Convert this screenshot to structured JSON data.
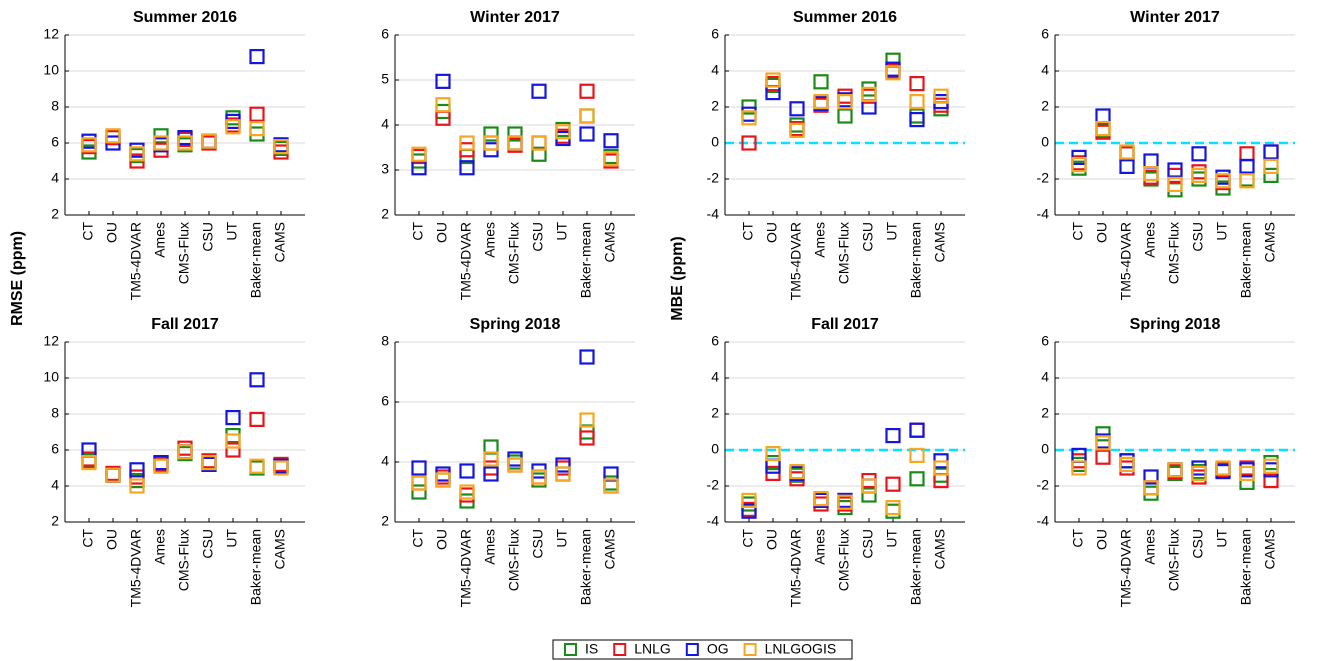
{
  "chart_data": [
    {
      "type": "scatter",
      "title": "Summer 2016",
      "ylabel": "RMSE (ppm)",
      "categories": [
        "CT",
        "OU",
        "TM5-4DVAR",
        "Ames",
        "CMS-Flux",
        "CSU",
        "UT",
        "Baker-mean",
        "CAMS"
      ],
      "ylim": [
        2,
        12
      ],
      "yticks": [
        2,
        4,
        6,
        8,
        10,
        12
      ],
      "grid": true,
      "series": [
        {
          "name": "IS",
          "color": "#1a8a1a",
          "values": [
            5.5,
            6.3,
            5.3,
            6.4,
            5.9,
            6.1,
            7.4,
            6.5,
            5.7
          ]
        },
        {
          "name": "LNLG",
          "color": "#e8141c",
          "values": [
            5.8,
            6.3,
            5.0,
            5.6,
            6.2,
            6.0,
            7.0,
            7.6,
            5.5
          ]
        },
        {
          "name": "OG",
          "color": "#1515e0",
          "values": [
            6.1,
            6.0,
            5.6,
            5.9,
            6.3,
            6.1,
            7.2,
            10.8,
            5.9
          ]
        },
        {
          "name": "LNLGOGIS",
          "color": "#f5a623",
          "values": [
            5.9,
            6.4,
            5.4,
            6.0,
            6.0,
            6.1,
            6.9,
            6.8,
            5.8
          ]
        }
      ]
    },
    {
      "type": "scatter",
      "title": "Winter 2017",
      "categories": [
        "CT",
        "OU",
        "TM5-4DVAR",
        "Ames",
        "CMS-Flux",
        "CSU",
        "UT",
        "Baker-mean",
        "CAMS"
      ],
      "ylim": [
        2,
        6
      ],
      "yticks": [
        2,
        3,
        4,
        5,
        6
      ],
      "grid": true,
      "series": [
        {
          "values": [
            3.2,
            4.3,
            3.3,
            3.8,
            3.8,
            3.35,
            3.9,
            4.2,
            3.3
          ]
        },
        {
          "values": [
            3.3,
            4.15,
            3.45,
            3.6,
            3.55,
            3.6,
            3.75,
            4.75,
            3.2
          ]
        },
        {
          "values": [
            3.05,
            4.97,
            3.05,
            3.45,
            3.6,
            4.75,
            3.7,
            3.8,
            3.65
          ]
        },
        {
          "values": [
            3.35,
            4.45,
            3.6,
            3.6,
            3.6,
            3.6,
            3.85,
            4.2,
            3.25
          ]
        }
      ]
    },
    {
      "type": "scatter",
      "title": "Summer 2016",
      "ylabel": "MBE (ppm)",
      "categories": [
        "CT",
        "OU",
        "TM5-4DVAR",
        "Ames",
        "CMS-Flux",
        "CSU",
        "UT",
        "Baker-mean",
        "CAMS"
      ],
      "ylim": [
        -4,
        6
      ],
      "yticks": [
        -4,
        -2,
        0,
        2,
        4,
        6
      ],
      "grid": true,
      "reference_line": 0,
      "series": [
        {
          "values": [
            2.0,
            3.2,
            1.0,
            3.4,
            1.5,
            3.0,
            4.6,
            1.5,
            1.9
          ]
        },
        {
          "values": [
            0.0,
            3.3,
            0.8,
            2.1,
            2.6,
            2.6,
            4.0,
            3.3,
            2.1
          ]
        },
        {
          "values": [
            1.6,
            2.8,
            1.9,
            2.2,
            2.4,
            2.0,
            4.1,
            1.3,
            2.3
          ]
        },
        {
          "values": [
            1.4,
            3.5,
            0.7,
            2.3,
            2.3,
            2.7,
            3.9,
            2.3,
            2.6
          ]
        }
      ]
    },
    {
      "type": "scatter",
      "title": "Winter 2017",
      "categories": [
        "CT",
        "OU",
        "TM5-4DVAR",
        "Ames",
        "CMS-Flux",
        "CSU",
        "UT",
        "Baker-mean",
        "CAMS"
      ],
      "ylim": [
        -4,
        6
      ],
      "yticks": [
        -4,
        -2,
        0,
        2,
        4,
        6
      ],
      "grid": true,
      "reference_line": 0,
      "series": [
        {
          "values": [
            -1.4,
            0.7,
            -0.6,
            -2.0,
            -2.6,
            -2.0,
            -2.5,
            -2.0,
            -1.8
          ]
        },
        {
          "values": [
            -1.1,
            0.6,
            -0.6,
            -1.9,
            -1.8,
            -1.6,
            -2.2,
            -0.6,
            -0.5
          ]
        },
        {
          "values": [
            -0.8,
            1.5,
            -1.3,
            -1.0,
            -1.5,
            -0.6,
            -1.9,
            -1.3,
            -0.5
          ]
        },
        {
          "values": [
            -1.2,
            0.8,
            -0.5,
            -1.7,
            -2.3,
            -1.8,
            -2.1,
            -2.1,
            -1.3
          ]
        }
      ]
    },
    {
      "type": "scatter",
      "title": "Fall 2017",
      "categories": [
        "CT",
        "OU",
        "TM5-4DVAR",
        "Ames",
        "CMS-Flux",
        "CSU",
        "UT",
        "Baker-mean",
        "CAMS"
      ],
      "ylim": [
        2,
        12
      ],
      "yticks": [
        2,
        4,
        6,
        8,
        10,
        12
      ],
      "grid": true,
      "series": [
        {
          "values": [
            5.4,
            4.6,
            4.3,
            5.3,
            5.8,
            5.2,
            6.8,
            5.0,
            5.1
          ]
        },
        {
          "values": [
            5.5,
            4.7,
            4.5,
            5.2,
            6.1,
            5.4,
            6.0,
            7.7,
            5.2
          ]
        },
        {
          "values": [
            6.0,
            4.6,
            4.9,
            5.3,
            5.9,
            5.2,
            7.8,
            9.9,
            5.1
          ]
        },
        {
          "values": [
            5.3,
            4.6,
            4.0,
            5.1,
            5.9,
            5.3,
            6.5,
            5.1,
            5.0
          ]
        }
      ]
    },
    {
      "type": "scatter",
      "title": "Spring 2018",
      "categories": [
        "CT",
        "OU",
        "TM5-4DVAR",
        "Ames",
        "CMS-Flux",
        "CSU",
        "UT",
        "Baker-mean",
        "CAMS"
      ],
      "ylim": [
        2,
        8
      ],
      "yticks": [
        2,
        4,
        6,
        8
      ],
      "grid": true,
      "series": [
        {
          "values": [
            3.0,
            3.4,
            2.7,
            4.5,
            4.0,
            3.4,
            3.6,
            5.0,
            3.3
          ]
        },
        {
          "values": [
            3.3,
            3.5,
            2.9,
            3.8,
            3.9,
            3.5,
            3.8,
            4.8,
            3.2
          ]
        },
        {
          "values": [
            3.8,
            3.6,
            3.7,
            3.6,
            4.1,
            3.7,
            3.9,
            7.5,
            3.6
          ]
        },
        {
          "values": [
            3.3,
            3.4,
            3.0,
            4.1,
            3.9,
            3.5,
            3.6,
            5.4,
            3.2
          ]
        }
      ]
    },
    {
      "type": "scatter",
      "title": "Fall 2017",
      "categories": [
        "CT",
        "OU",
        "TM5-4DVAR",
        "Ames",
        "CMS-Flux",
        "CSU",
        "UT",
        "Baker-mean",
        "CAMS"
      ],
      "ylim": [
        -4,
        6
      ],
      "yticks": [
        -4,
        -2,
        0,
        2,
        4,
        6
      ],
      "grid": true,
      "reference_line": 0,
      "series": [
        {
          "values": [
            -3.0,
            -0.7,
            -1.4,
            -2.8,
            -3.2,
            -2.5,
            -3.4,
            -1.6,
            -1.4
          ]
        },
        {
          "values": [
            -3.3,
            -1.3,
            -1.6,
            -3.0,
            -3.0,
            -1.7,
            -1.9,
            1.1,
            -1.7
          ]
        },
        {
          "values": [
            -3.4,
            -0.9,
            -1.3,
            -2.8,
            -2.8,
            -2.0,
            0.8,
            1.1,
            -0.6
          ]
        },
        {
          "values": [
            -2.8,
            -0.2,
            -1.2,
            -2.7,
            -2.9,
            -2.0,
            -3.2,
            -0.3,
            -1.0
          ]
        }
      ]
    },
    {
      "type": "scatter",
      "title": "Spring 2018",
      "categories": [
        "CT",
        "OU",
        "TM5-4DVAR",
        "Ames",
        "CMS-Flux",
        "CSU",
        "UT",
        "Baker-mean",
        "CAMS"
      ],
      "ylim": [
        -4,
        6
      ],
      "yticks": [
        -4,
        -2,
        0,
        2,
        4,
        6
      ],
      "grid": true,
      "reference_line": 0,
      "series": [
        {
          "values": [
            -0.8,
            0.9,
            -0.6,
            -2.4,
            -1.3,
            -1.2,
            -1.1,
            -1.8,
            -0.7
          ]
        },
        {
          "values": [
            -0.6,
            -0.4,
            -1.0,
            -2.1,
            -1.2,
            -1.5,
            -1.1,
            -1.0,
            -1.7
          ]
        },
        {
          "values": [
            -0.3,
            0.5,
            -0.6,
            -1.5,
            -1.1,
            -1.0,
            -1.2,
            -1.1,
            -1.1
          ]
        },
        {
          "values": [
            -1.0,
            0.4,
            -0.8,
            -2.1,
            -1.1,
            -1.3,
            -1.0,
            -1.3,
            -0.9
          ]
        }
      ]
    }
  ]
}
